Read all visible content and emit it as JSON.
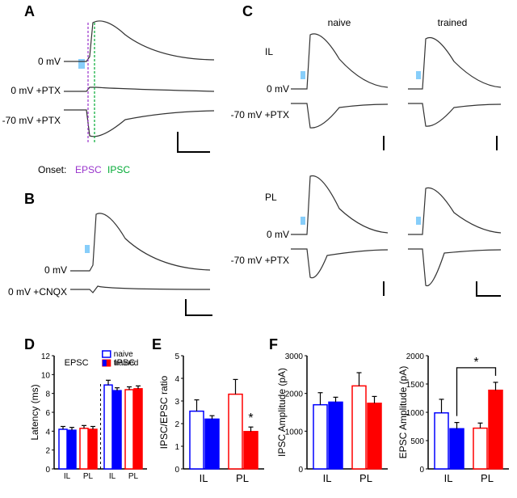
{
  "colors": {
    "naive_il": "#ffffff",
    "naive_il_border": "#0000ff",
    "trained_il": "#0000ff",
    "naive_pl_border": "#ff0000",
    "trained_pl": "#ff0000",
    "epsc_dash": "#9933cc",
    "ipsc_dash": "#00aa33",
    "light_blue": "#87cefa",
    "trace": "#333333",
    "axis": "#000000"
  },
  "panels": {
    "A": {
      "label": "A",
      "traces": [
        "0 mV",
        "0 mV +PTX",
        "-70 mV +PTX"
      ],
      "onset_label": "Onset:",
      "epsc_label": "EPSC",
      "ipsc_label": "IPSC"
    },
    "B": {
      "label": "B",
      "traces": [
        "0 mV",
        "0 mV +CNQX"
      ]
    },
    "C": {
      "label": "C",
      "conditions": [
        "naive",
        "trained"
      ],
      "regions": [
        "IL",
        "PL"
      ],
      "traces_il": [
        "0 mV",
        "-70 mV +PTX"
      ],
      "traces_pl": [
        "0 mV",
        "-70 mV +PTX"
      ]
    },
    "D": {
      "label": "D",
      "ylabel": "Latency (ms)",
      "ylim": [
        0,
        12
      ],
      "ytick_step": 2,
      "legend": [
        "naive",
        "trained"
      ],
      "group_labels": [
        "EPSC",
        "IPSC"
      ],
      "categories": [
        "IL",
        "PL",
        "IL",
        "PL"
      ],
      "data": {
        "epsc_il_naive": {
          "v": 4.2,
          "e": 0.3
        },
        "epsc_il_trained": {
          "v": 4.1,
          "e": 0.3
        },
        "epsc_pl_naive": {
          "v": 4.3,
          "e": 0.3
        },
        "epsc_pl_trained": {
          "v": 4.2,
          "e": 0.3
        },
        "ipsc_il_naive": {
          "v": 8.9,
          "e": 0.5
        },
        "ipsc_il_trained": {
          "v": 8.3,
          "e": 0.3
        },
        "ipsc_pl_naive": {
          "v": 8.4,
          "e": 0.3
        },
        "ipsc_pl_trained": {
          "v": 8.5,
          "e": 0.3
        }
      }
    },
    "E": {
      "label": "E",
      "ylabel": "IPSC/EPSC ratio",
      "ylim": [
        0,
        5
      ],
      "ytick_step": 1,
      "categories": [
        "IL",
        "PL"
      ],
      "data": {
        "il_naive": {
          "v": 2.55,
          "e": 0.5
        },
        "il_trained": {
          "v": 2.2,
          "e": 0.15
        },
        "pl_naive": {
          "v": 3.3,
          "e": 0.65
        },
        "pl_trained": {
          "v": 1.65,
          "e": 0.2
        }
      },
      "sig": "*"
    },
    "F": {
      "label": "F",
      "left": {
        "ylabel": "IPSC Amplitude (pA)",
        "ylim": [
          0,
          3000
        ],
        "ytick_step": 1000,
        "categories": [
          "IL",
          "PL"
        ],
        "data": {
          "il_naive": {
            "v": 1700,
            "e": 320
          },
          "il_trained": {
            "v": 1770,
            "e": 130
          },
          "pl_naive": {
            "v": 2200,
            "e": 350
          },
          "pl_trained": {
            "v": 1740,
            "e": 180
          }
        }
      },
      "right": {
        "ylabel": "EPSC Amplitude (pA)",
        "ylim": [
          0,
          2000
        ],
        "ytick_step": 500,
        "categories": [
          "IL",
          "PL"
        ],
        "data": {
          "il_naive": {
            "v": 990,
            "e": 240
          },
          "il_trained": {
            "v": 710,
            "e": 110
          },
          "pl_naive": {
            "v": 720,
            "e": 90
          },
          "pl_trained": {
            "v": 1390,
            "e": 140
          }
        },
        "sig": "*"
      }
    }
  }
}
